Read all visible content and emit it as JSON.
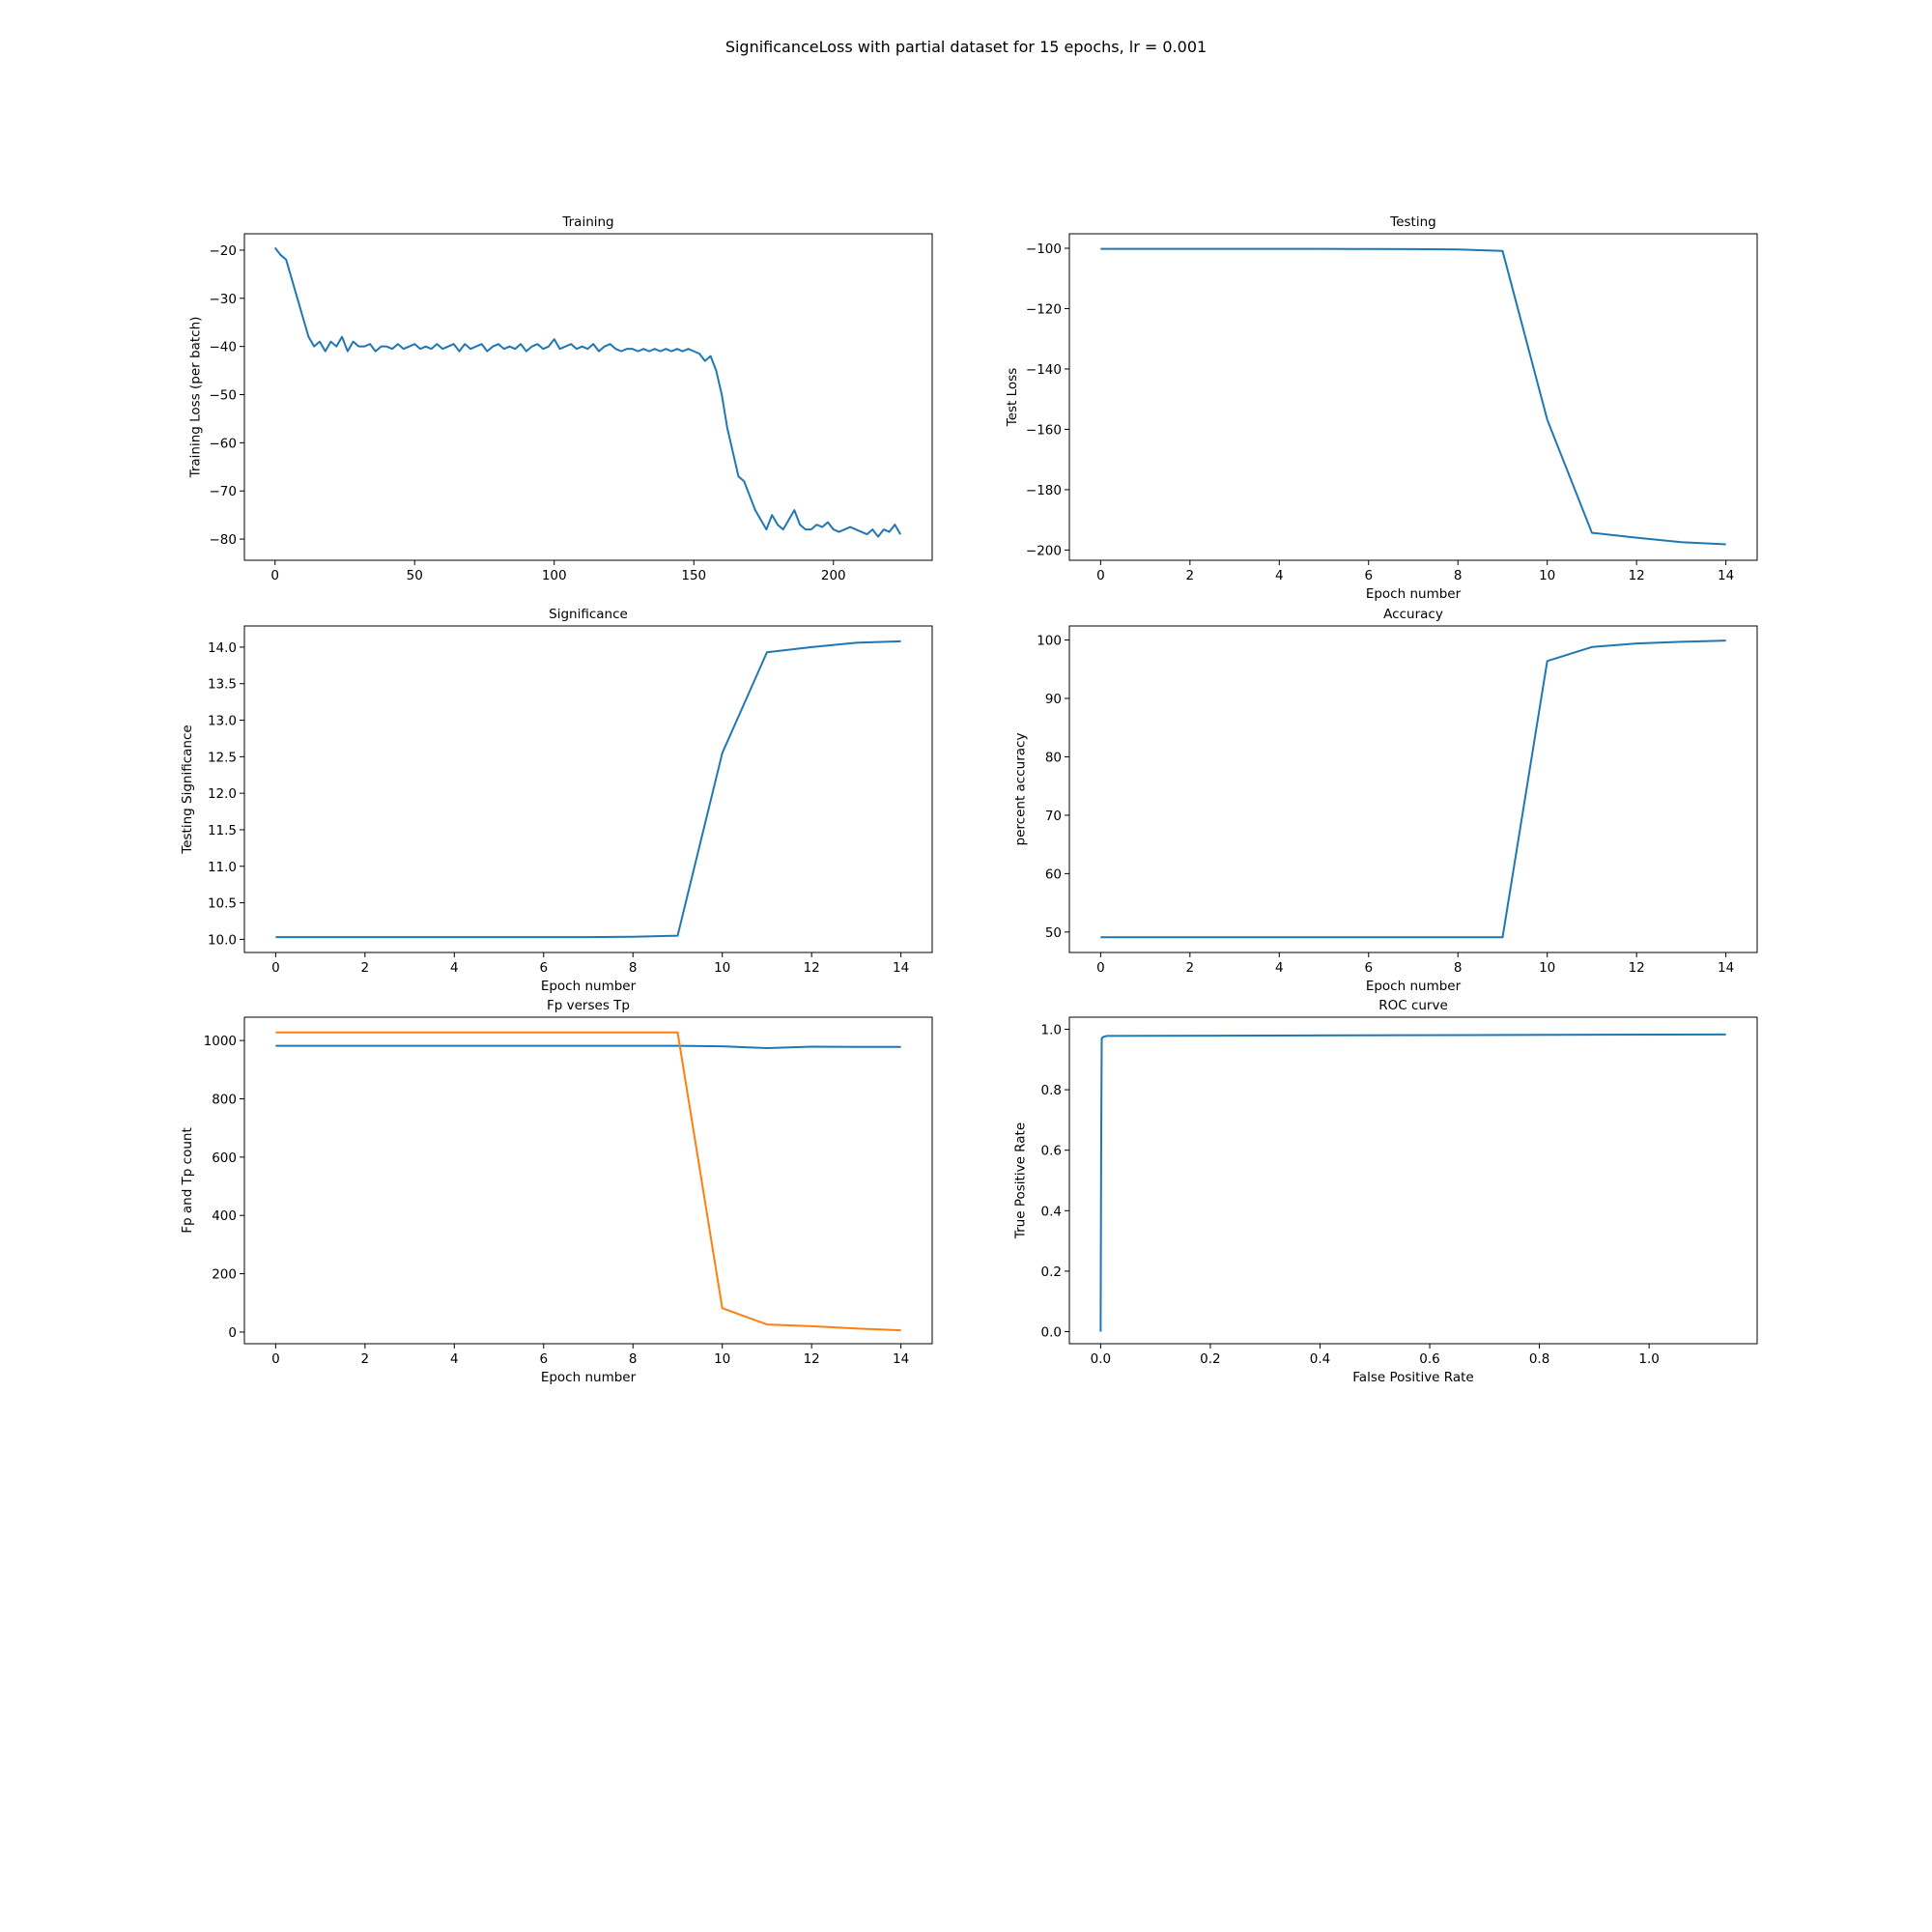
{
  "figure": {
    "suptitle": "SignificanceLoss with partial dataset for 15 epochs, lr = 0.001"
  },
  "colors": {
    "series_1": "#1f77b4",
    "series_2": "#ff7f0e",
    "axes": "#000000"
  },
  "chart_data": [
    {
      "id": "training",
      "type": "line",
      "title": "Training",
      "xlabel": "",
      "ylabel": "Training Loss (per batch)",
      "xlim": [
        -10.97,
        235.37
      ],
      "ylim": [
        -84.4,
        -16.6
      ],
      "xticks": [
        0,
        50,
        100,
        150,
        200
      ],
      "yticks": [
        -80,
        -70,
        -60,
        -50,
        -40,
        -30,
        -20
      ],
      "series": [
        {
          "name": "training loss",
          "color": "#1f77b4",
          "x": [
            0,
            2,
            4,
            6,
            8,
            10,
            12,
            14,
            16,
            18,
            20,
            22,
            24,
            26,
            28,
            30,
            32,
            34,
            36,
            38,
            40,
            42,
            44,
            46,
            48,
            50,
            52,
            54,
            56,
            58,
            60,
            62,
            64,
            66,
            68,
            70,
            72,
            74,
            76,
            78,
            80,
            82,
            84,
            86,
            88,
            90,
            92,
            94,
            96,
            98,
            100,
            102,
            104,
            106,
            108,
            110,
            112,
            114,
            116,
            118,
            120,
            122,
            124,
            126,
            128,
            130,
            132,
            134,
            136,
            138,
            140,
            142,
            144,
            146,
            148,
            150,
            152,
            154,
            156,
            158,
            160,
            162,
            164,
            166,
            168,
            170,
            172,
            174,
            176,
            178,
            180,
            182,
            184,
            186,
            188,
            190,
            192,
            194,
            196,
            198,
            200,
            202,
            204,
            206,
            208,
            210,
            212,
            214,
            216,
            218,
            220,
            222,
            224
          ],
          "values": [
            -19.5,
            -21,
            -22,
            -26,
            -30,
            -34,
            -38,
            -40,
            -39,
            -41,
            -39,
            -40,
            -38,
            -41,
            -39,
            -40,
            -40,
            -39.5,
            -41,
            -40,
            -40,
            -40.5,
            -39.5,
            -40.5,
            -40,
            -39.5,
            -40.5,
            -40,
            -40.5,
            -39.5,
            -40.5,
            -40,
            -39.5,
            -41,
            -39.5,
            -40.5,
            -40,
            -39.5,
            -41,
            -40,
            -39.5,
            -40.5,
            -40,
            -40.5,
            -39.5,
            -41,
            -40,
            -39.5,
            -40.5,
            -40,
            -38.5,
            -40.5,
            -40,
            -39.5,
            -40.5,
            -40,
            -40.5,
            -39.5,
            -41,
            -40,
            -39.5,
            -40.5,
            -41,
            -40.5,
            -40.5,
            -41,
            -40.5,
            -41,
            -40.5,
            -41,
            -40.5,
            -41,
            -40.5,
            -41,
            -40.5,
            -41,
            -41.5,
            -43,
            -42,
            -45,
            -50,
            -57,
            -62,
            -67,
            -68,
            -71,
            -74,
            -76,
            -78,
            -75,
            -77,
            -78,
            -76,
            -74,
            -77,
            -78,
            -78,
            -77,
            -77.5,
            -76.5,
            -78,
            -78.5,
            -78,
            -77.5,
            -78,
            -78.5,
            -79,
            -78,
            -79.5,
            -78,
            -78.5,
            -77,
            -79
          ]
        }
      ]
    },
    {
      "id": "testing",
      "type": "line",
      "title": "Testing",
      "xlabel": "Epoch number",
      "ylabel": "Test Loss",
      "xlim": [
        -0.7,
        14.7
      ],
      "ylim": [
        -203.4,
        -95.2
      ],
      "xticks": [
        0,
        2,
        4,
        6,
        8,
        10,
        12,
        14
      ],
      "yticks": [
        -200,
        -180,
        -160,
        -140,
        -120,
        -100
      ],
      "series": [
        {
          "name": "test loss",
          "color": "#1f77b4",
          "x": [
            0,
            1,
            2,
            3,
            4,
            5,
            6,
            7,
            8,
            9,
            10,
            11,
            12,
            13,
            14
          ],
          "values": [
            -100.2,
            -100.2,
            -100.2,
            -100.2,
            -100.2,
            -100.2,
            -100.25,
            -100.3,
            -100.4,
            -100.9,
            -156.8,
            -194.3,
            -195.9,
            -197.4,
            -198.1
          ]
        }
      ]
    },
    {
      "id": "significance",
      "type": "line",
      "title": "Significance",
      "xlabel": "Epoch number",
      "ylabel": "Testing Significance",
      "xlim": [
        -0.7,
        14.7
      ],
      "ylim": [
        9.82,
        14.29
      ],
      "xticks": [
        0,
        2,
        4,
        6,
        8,
        10,
        12,
        14
      ],
      "yticks": [
        10.0,
        10.5,
        11.0,
        11.5,
        12.0,
        12.5,
        13.0,
        13.5,
        14.0
      ],
      "ytick_labels": [
        "10.0",
        "10.5",
        "11.0",
        "11.5",
        "12.0",
        "12.5",
        "13.0",
        "13.5",
        "14.0"
      ],
      "series": [
        {
          "name": "testing significance",
          "color": "#1f77b4",
          "x": [
            0,
            1,
            2,
            3,
            4,
            5,
            6,
            7,
            8,
            9,
            10,
            11,
            12,
            13,
            14
          ],
          "values": [
            10.03,
            10.03,
            10.03,
            10.03,
            10.03,
            10.03,
            10.03,
            10.03,
            10.035,
            10.05,
            12.55,
            13.93,
            14.0,
            14.06,
            14.08
          ]
        }
      ]
    },
    {
      "id": "accuracy",
      "type": "line",
      "title": "Accuracy",
      "xlabel": "Epoch number",
      "ylabel": "percent accuracy",
      "xlim": [
        -0.7,
        14.7
      ],
      "ylim": [
        46.5,
        102.4
      ],
      "xticks": [
        0,
        2,
        4,
        6,
        8,
        10,
        12,
        14
      ],
      "yticks": [
        50,
        60,
        70,
        80,
        90,
        100
      ],
      "series": [
        {
          "name": "percent accuracy",
          "color": "#1f77b4",
          "x": [
            0,
            1,
            2,
            3,
            4,
            5,
            6,
            7,
            8,
            9,
            10,
            11,
            12,
            13,
            14
          ],
          "values": [
            49.1,
            49.1,
            49.1,
            49.1,
            49.1,
            49.1,
            49.1,
            49.1,
            49.1,
            49.1,
            96.4,
            98.8,
            99.4,
            99.7,
            99.9
          ]
        }
      ]
    },
    {
      "id": "fp_tp",
      "type": "line",
      "title": "Fp verses Tp",
      "xlabel": "Epoch number",
      "ylabel": "Fp and Tp count",
      "xlim": [
        -0.7,
        14.7
      ],
      "ylim": [
        -40,
        1080
      ],
      "xticks": [
        0,
        2,
        4,
        6,
        8,
        10,
        12,
        14
      ],
      "yticks": [
        0,
        200,
        400,
        600,
        800,
        1000
      ],
      "series": [
        {
          "name": "Tp",
          "color": "#1f77b4",
          "x": [
            0,
            1,
            2,
            3,
            4,
            5,
            6,
            7,
            8,
            9,
            10,
            11,
            12,
            13,
            14
          ],
          "values": [
            982,
            982,
            982,
            982,
            982,
            982,
            982,
            982,
            982,
            982,
            980,
            974,
            979,
            978,
            978
          ]
        },
        {
          "name": "Fp",
          "color": "#ff7f0e",
          "x": [
            0,
            1,
            2,
            3,
            4,
            5,
            6,
            7,
            8,
            9,
            10,
            11,
            12,
            13,
            14
          ],
          "values": [
            1028,
            1028,
            1028,
            1028,
            1028,
            1028,
            1028,
            1028,
            1028,
            1028,
            82,
            26,
            20,
            12,
            6
          ]
        }
      ]
    },
    {
      "id": "roc",
      "type": "line",
      "title": "ROC curve",
      "xlabel": "False Positive Rate",
      "ylabel": "True Positive Rate",
      "xlim": [
        -0.057,
        1.197
      ],
      "ylim": [
        -0.04,
        1.04
      ],
      "xticks": [
        0.0,
        0.2,
        0.4,
        0.6,
        0.8,
        1.0
      ],
      "xtick_labels": [
        "0.0",
        "0.2",
        "0.4",
        "0.6",
        "0.8",
        "1.0"
      ],
      "yticks": [
        0.0,
        0.2,
        0.4,
        0.6,
        0.8,
        1.0
      ],
      "ytick_labels": [
        "0.0",
        "0.2",
        "0.4",
        "0.6",
        "0.8",
        "1.0"
      ],
      "series": [
        {
          "name": "ROC",
          "color": "#1f77b4",
          "x": [
            0.0,
            0.001,
            0.002,
            0.005,
            0.012,
            1.14
          ],
          "values": [
            0.0,
            0.6,
            0.97,
            0.975,
            0.978,
            0.983
          ]
        }
      ]
    }
  ]
}
